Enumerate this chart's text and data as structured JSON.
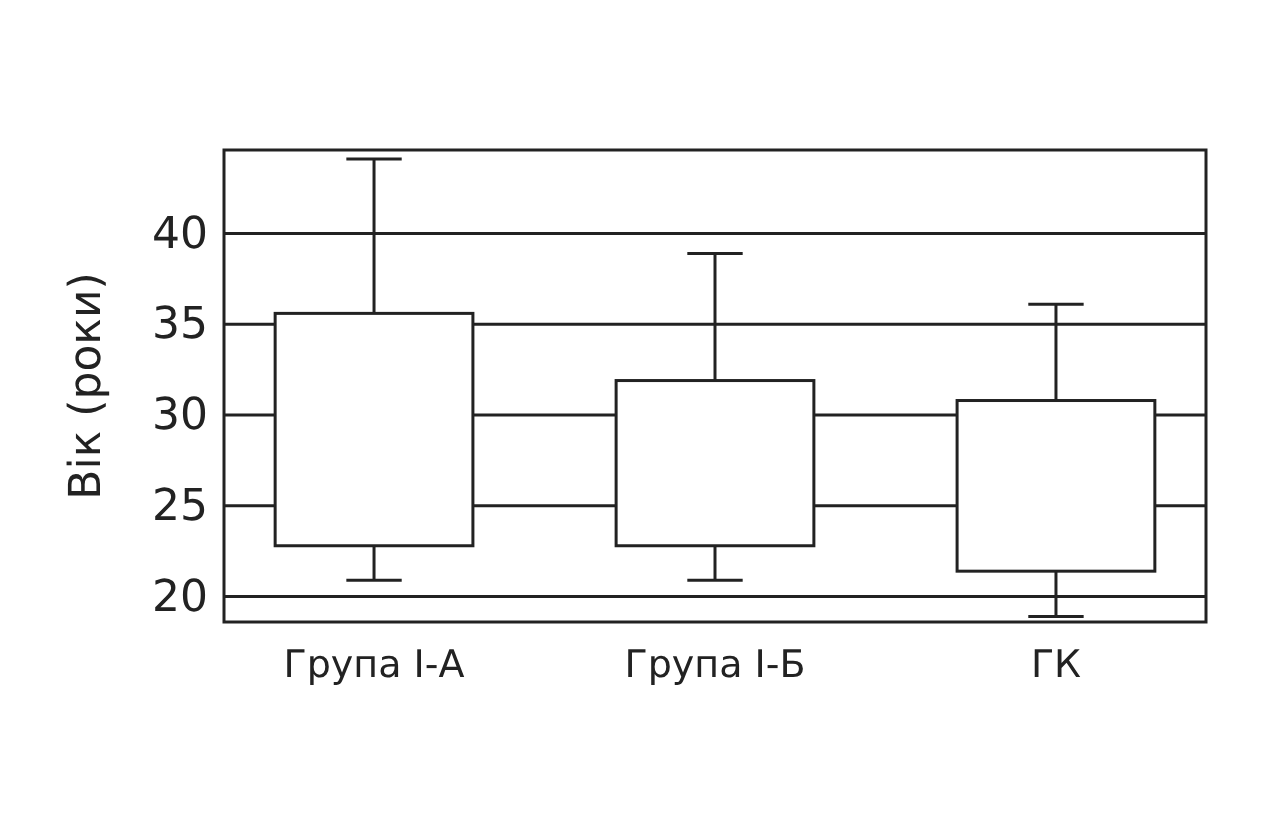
{
  "chart_data": {
    "type": "box",
    "ylabel": "Вік (роки)",
    "categories": [
      "Група І-А",
      "Група І-Б",
      "ГК"
    ],
    "boxes": [
      {
        "low": 20.9,
        "q1": 22.8,
        "q3": 35.6,
        "high": 44.1
      },
      {
        "low": 20.9,
        "q1": 22.8,
        "q3": 31.9,
        "high": 38.9
      },
      {
        "low": 18.9,
        "q1": 21.4,
        "q3": 30.8,
        "high": 36.1
      }
    ],
    "ylim": [
      18.6,
      44.6
    ],
    "yticks": [
      20,
      25,
      30,
      35,
      40
    ],
    "grid": "y"
  }
}
